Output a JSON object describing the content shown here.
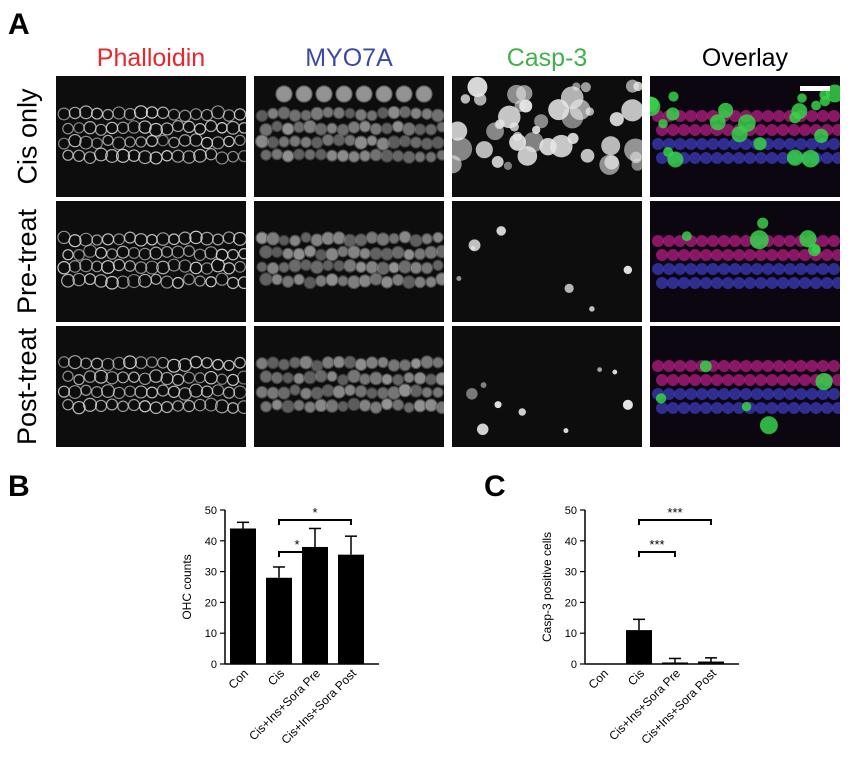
{
  "panel_labels": {
    "a": "A",
    "b": "B",
    "c": "C"
  },
  "columns": [
    {
      "label": "Phalloidin",
      "color": "#e8262b"
    },
    {
      "label": "MYO7A",
      "color": "#3b4aa8"
    },
    {
      "label": "Casp-3",
      "color": "#3fb24a"
    },
    {
      "label": "Overlay",
      "color": "#000000"
    }
  ],
  "rows": [
    {
      "label": "Cis only"
    },
    {
      "label": "Pre-treat"
    },
    {
      "label": "Post-treat"
    }
  ],
  "chart_data": [
    {
      "type": "bar",
      "ylabel": "OHC counts",
      "ylim": [
        0,
        50
      ],
      "yticks": [
        "0",
        "10",
        "20",
        "30",
        "40",
        "50"
      ],
      "categories": [
        "Con",
        "Cis",
        "Cis+Ins+Sora Pre",
        "Cis+Ins+Sora Post"
      ],
      "values": [
        44,
        28,
        38,
        35.5
      ],
      "errors": [
        2,
        3.5,
        6,
        6
      ],
      "significance": [
        {
          "from": 1,
          "to": 2,
          "label": "*"
        },
        {
          "from": 1,
          "to": 3,
          "label": "*"
        }
      ]
    },
    {
      "type": "bar",
      "ylabel": "Casp-3 positive cells",
      "ylim": [
        0,
        50
      ],
      "yticks": [
        "0",
        "10",
        "20",
        "30",
        "40",
        "50"
      ],
      "categories": [
        "Con",
        "Cis",
        "Cis+Ins+Sora Pre",
        "Cis+Ins+Sora Post"
      ],
      "values": [
        0,
        11,
        0.5,
        0.8
      ],
      "errors": [
        0,
        3.5,
        1.3,
        1.2
      ],
      "significance": [
        {
          "from": 1,
          "to": 2,
          "label": "***"
        },
        {
          "from": 1,
          "to": 3,
          "label": "***"
        }
      ]
    }
  ]
}
